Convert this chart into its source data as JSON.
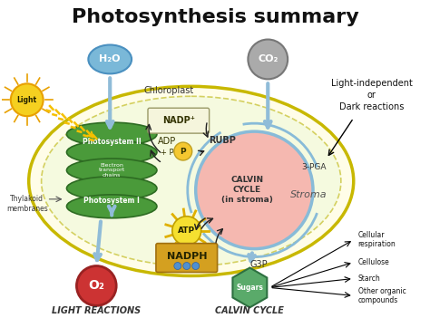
{
  "title": "Photosynthesis summary",
  "title_fontsize": 16,
  "background_color": "#ffffff",
  "chloroplast_fill": "#fffde8",
  "chloroplast_edge": "#c8b800",
  "inner_fill": "#f5fadf",
  "inner_edge": "#d4d060",
  "thylakoid_fill": "#4a9a3a",
  "thylakoid_edge": "#2d6b22",
  "calvin_fill": "#f5b8b0",
  "calvin_edge": "#88bbd8",
  "h2o_fill": "#7ab8d8",
  "h2o_edge": "#4a90c0",
  "co2_fill": "#aaaaaa",
  "co2_edge": "#777777",
  "o2_fill": "#cc3333",
  "o2_edge": "#992222",
  "sugars_fill": "#5aaa6a",
  "sugars_edge": "#2d7040",
  "nadph_fill": "#d4a020",
  "nadph_edge": "#a07010",
  "nadp_fill": "#f5f5dc",
  "nadp_edge": "#999966",
  "atp_fill": "#f5e030",
  "atp_edge": "#c0a000",
  "adp_fill": "#f5f5dc",
  "adp_edge": "#999966",
  "p_fill": "#f5c830",
  "p_edge": "#c0a020",
  "arrow_blue": "#90bcd8",
  "arrow_black": "#222222",
  "stroma_label": "Stroma",
  "chloroplast_label": "Chloroplast",
  "light_independent_label": "Light-independent\nor\nDark reactions",
  "thylakoid_label": "Thylakoid\nmembranes",
  "h2o": "H₂O",
  "co2": "CO₂",
  "o2": "O₂",
  "light": "Light",
  "photosystem2": "Photosystem II",
  "electron_transport": "Electron\ntransport\nchains",
  "photosystem1": "Photosystem I",
  "nadp": "NADP⁺",
  "adp": "ADP",
  "plus_p": "+ P",
  "rubp": "RUBP",
  "calvin_cycle": "CALVIN\nCYCLE\n(in stroma)",
  "three_pga": "3-PGA",
  "atp": "ATP",
  "nadph": "NADPH",
  "g3p": "G3P",
  "sugars": "Sugars",
  "light_reactions": "LIGHT REACTIONS",
  "calvin_cycle_bottom": "CALVIN CYCLE",
  "cellular_respiration": "Cellular\nrespiration",
  "cellulose": "Cellulose",
  "starch": "Starch",
  "other_organic": "Other organic\ncompounds"
}
